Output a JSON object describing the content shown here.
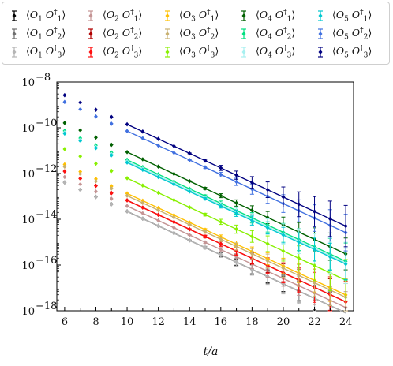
{
  "chart_data": {
    "type": "scatter",
    "title": "",
    "xlabel": "t/a",
    "ylabel": "",
    "xlim": [
      5.5,
      24.5
    ],
    "ylim_log10": [
      -18,
      -8
    ],
    "y_scale": "log",
    "grid": false,
    "legend_position": "top",
    "x_ticks": [
      6,
      8,
      10,
      12,
      14,
      16,
      18,
      20,
      22,
      24
    ],
    "x_tick_labels": [
      "6",
      "8",
      "10",
      "12",
      "14",
      "16",
      "18",
      "20",
      "22",
      "24"
    ],
    "y_ticks_log10": [
      -18,
      -16,
      -14,
      -12,
      -10,
      -8
    ],
    "y_tick_labels": [
      {
        "base": "10",
        "exp": "−18"
      },
      {
        "base": "10",
        "exp": "−16"
      },
      {
        "base": "10",
        "exp": "−14"
      },
      {
        "base": "10",
        "exp": "−12"
      },
      {
        "base": "10",
        "exp": "−10"
      },
      {
        "base": "10",
        "exp": "−8"
      }
    ],
    "series": [
      {
        "name": "⟨O1 O1†⟩",
        "color": "#000000",
        "a": -10.485,
        "b": -0.3169,
        "fit": [
          10,
          24
        ]
      },
      {
        "name": "⟨O1 O2†⟩",
        "color": "#6e6e6e",
        "a": -10.485,
        "b": -0.3169,
        "fit": [
          10,
          24
        ]
      },
      {
        "name": "⟨O1 O3†⟩",
        "color": "#b5b5b5",
        "a": -10.485,
        "b": -0.3169,
        "fit": [
          10,
          24
        ]
      },
      {
        "name": "⟨O2 O1†⟩",
        "color": "#c49494",
        "a": -10.25,
        "b": -0.317,
        "fit": [
          10,
          24
        ]
      },
      {
        "name": "⟨O2 O2†⟩",
        "color": "#b00000",
        "a": -10.0,
        "b": -0.317,
        "fit": [
          10,
          24
        ]
      },
      {
        "name": "⟨O2 O3†⟩",
        "color": "#ff1010",
        "a": -10.0,
        "b": -0.317,
        "fit": [
          10,
          24
        ]
      },
      {
        "name": "⟨O3 O1†⟩",
        "color": "#ffc000",
        "a": -9.7,
        "b": -0.317,
        "fit": [
          10,
          24
        ]
      },
      {
        "name": "⟨O3 O2†⟩",
        "color": "#c8b070",
        "a": -9.8,
        "b": -0.317,
        "fit": [
          10,
          24
        ]
      },
      {
        "name": "⟨O3 O3†⟩",
        "color": "#88f000",
        "a": -9.02,
        "b": -0.3184,
        "fit": [
          10,
          24
        ]
      },
      {
        "name": "⟨O4 O1†⟩",
        "color": "#006000",
        "a": -7.88,
        "b": -0.3181,
        "fit": [
          10,
          24
        ]
      },
      {
        "name": "⟨O4 O2†⟩",
        "color": "#00e080",
        "a": -8.23,
        "b": -0.317,
        "fit": [
          10,
          24
        ]
      },
      {
        "name": "⟨O4 O3†⟩",
        "color": "#a8f0f0",
        "a": -8.3,
        "b": -0.317,
        "fit": [
          10,
          24
        ]
      },
      {
        "name": "⟨O5 O1†⟩",
        "color": "#00c8d0",
        "a": -8.35,
        "b": -0.317,
        "fit": [
          10,
          24
        ]
      },
      {
        "name": "⟨O5 O2†⟩",
        "color": "#4070e0",
        "a": -6.97,
        "b": -0.3172,
        "fit": [
          10,
          24
        ]
      },
      {
        "name": "⟨O5 O3†⟩",
        "color": "#000080",
        "a": -6.67,
        "b": -0.3178,
        "fit": [
          10,
          24
        ]
      }
    ]
  }
}
